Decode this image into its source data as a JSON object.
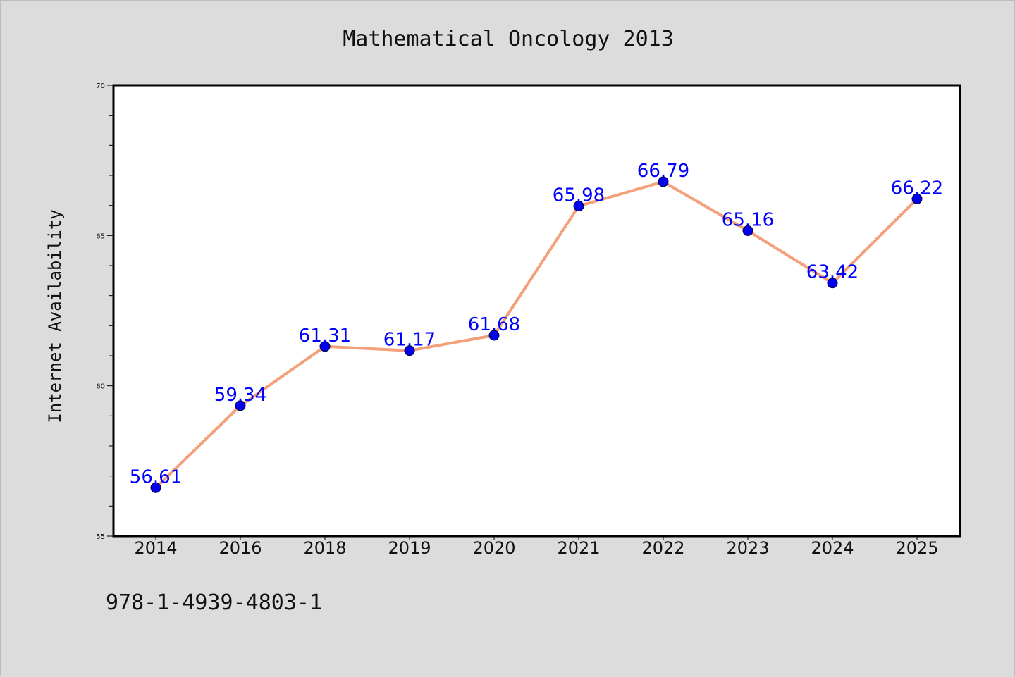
{
  "chart_data": {
    "type": "line",
    "title": "Mathematical Oncology 2013",
    "ylabel": "Internet Availability",
    "xlabel": "",
    "categories": [
      "2014",
      "2016",
      "2018",
      "2019",
      "2020",
      "2021",
      "2022",
      "2023",
      "2024",
      "2025"
    ],
    "series": [
      {
        "values": [
          56.61,
          59.34,
          61.31,
          61.17,
          61.68,
          65.98,
          66.79,
          65.16,
          63.42,
          66.22
        ]
      }
    ],
    "data_labels": [
      "56.61",
      "59.34",
      "61.31",
      "61.17",
      "61.68",
      "65.98",
      "66.79",
      "65.16",
      "63.42",
      "66.22"
    ],
    "ylim": [
      55,
      70
    ],
    "yticks": [
      55,
      60,
      65,
      70
    ],
    "ytick_labels": [
      "55",
      "60",
      "65",
      "70"
    ],
    "grid": false,
    "legend": "none",
    "colors": {
      "line": "#f4a07a",
      "marker": "#0000ee",
      "label": "#0000ff",
      "background": "#dcdcdc",
      "plot_area": "#ffffff"
    }
  },
  "footer_text": "978-1-4939-4803-1"
}
